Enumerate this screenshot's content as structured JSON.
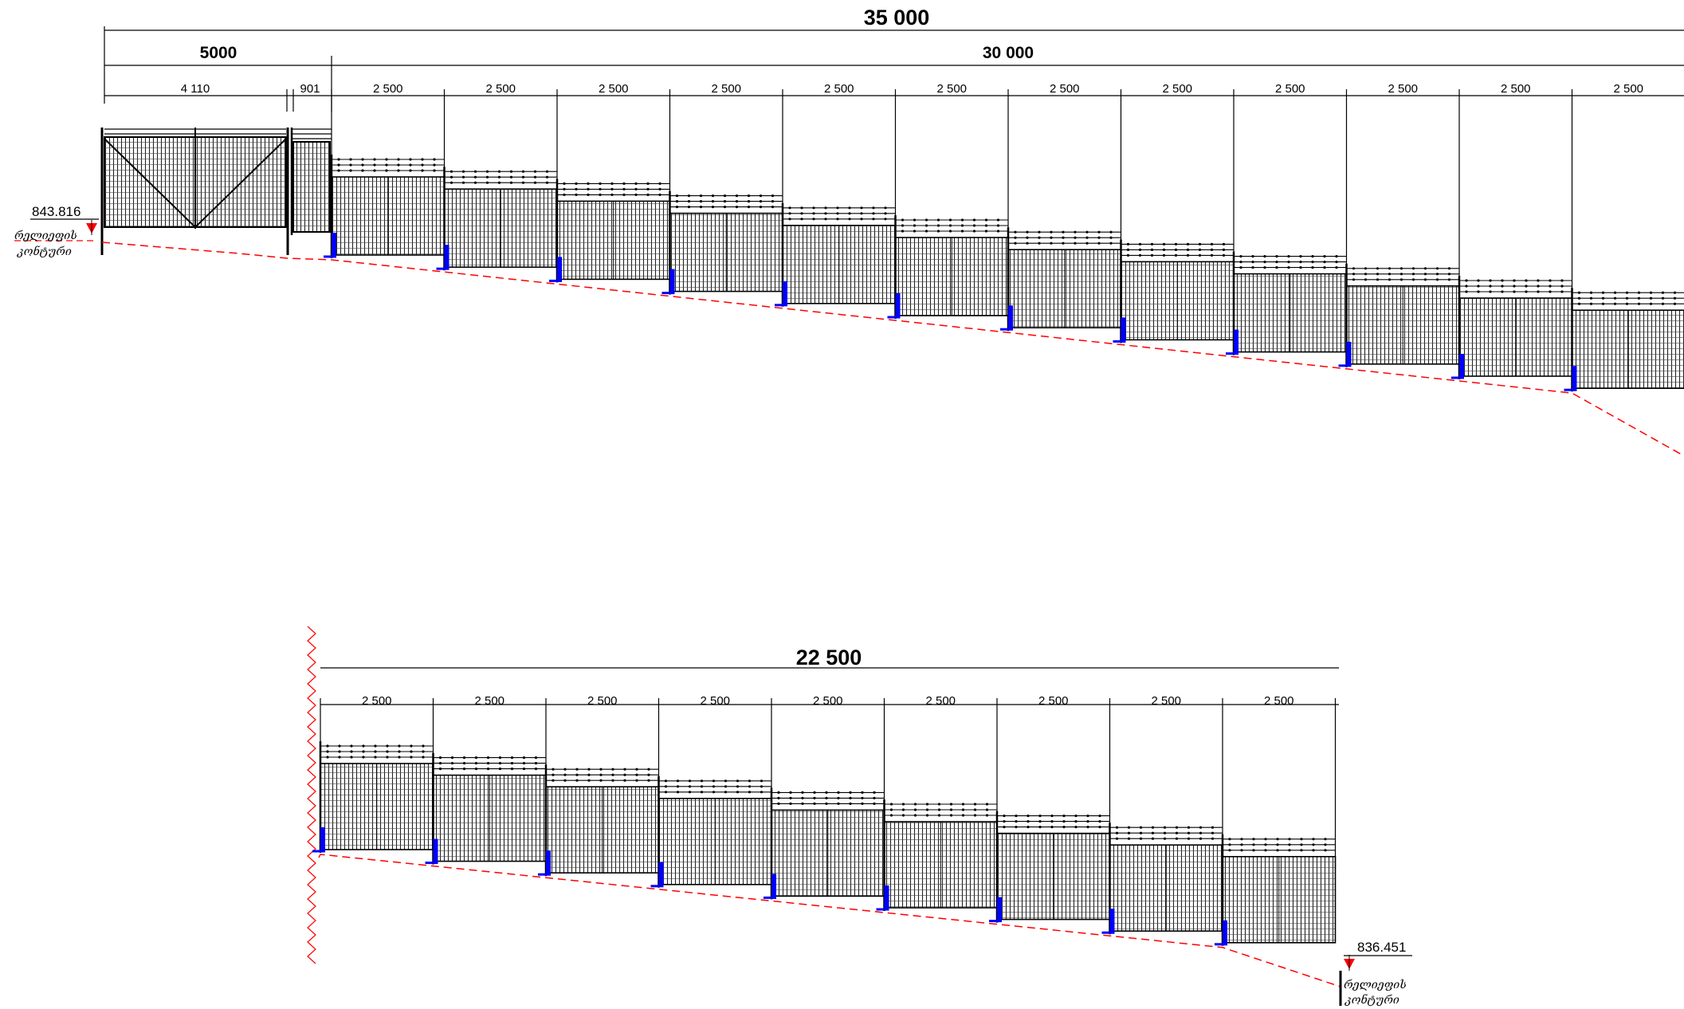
{
  "colors": {
    "line": "#000000",
    "ground_line": "#ff0000",
    "footing": "#0000ff",
    "marker": "#ff0000"
  },
  "upper_elevation": {
    "overall_length": "35 000",
    "gate_length": "5000",
    "fence_length": "30 000",
    "gate_leaf": "4 110",
    "wicket": "901",
    "panels": [
      "2 500",
      "2 500",
      "2 500",
      "2 500",
      "2 500",
      "2 500",
      "2 500",
      "2 500",
      "2 500",
      "2 500",
      "2 500",
      "2 500"
    ],
    "start_level": "843.816",
    "relief_label_1": "რელიეფის",
    "relief_label_2": "კონტური"
  },
  "lower_elevation": {
    "overall_length": "22 500",
    "panels": [
      "2 500",
      "2 500",
      "2 500",
      "2 500",
      "2 500",
      "2 500",
      "2 500",
      "2 500",
      "2 500"
    ],
    "end_level": "836.451",
    "relief_label_1": "რელიეფის",
    "relief_label_2": "კონტური"
  }
}
